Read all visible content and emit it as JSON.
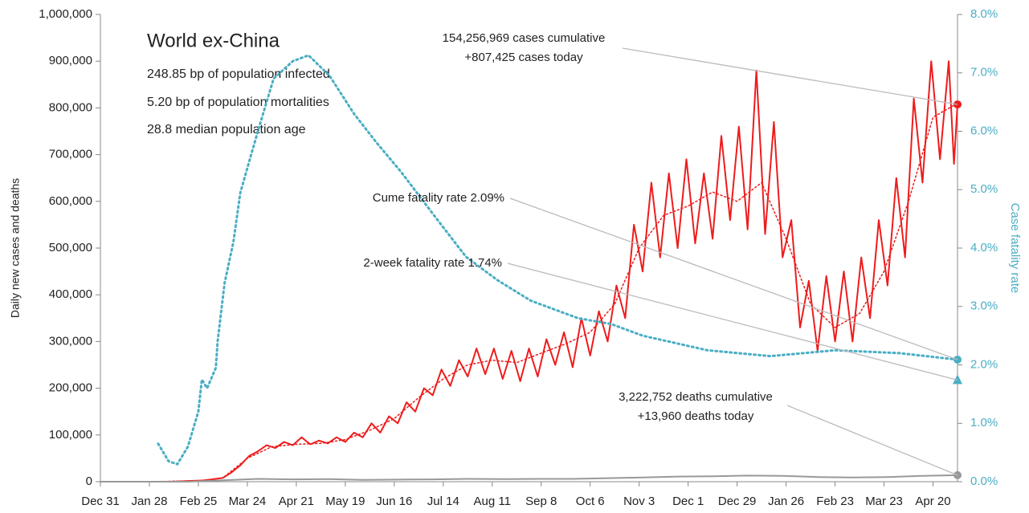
{
  "chart_data": {
    "type": "line",
    "title": "World ex-China",
    "subtitle_lines": [
      "248.85 bp of population infected",
      "5.20 bp of population mortalities",
      "28.8 median population age"
    ],
    "ylabel": "Daily new cases and deaths",
    "y2label": "Case fatality rate",
    "xlim": [
      0,
      490
    ],
    "xticks": [
      {
        "value": 0,
        "label": "Dec 31"
      },
      {
        "value": 28,
        "label": "Jan 28"
      },
      {
        "value": 56,
        "label": "Feb 25"
      },
      {
        "value": 84,
        "label": "Mar 24"
      },
      {
        "value": 112,
        "label": "Apr 21"
      },
      {
        "value": 140,
        "label": "May 19"
      },
      {
        "value": 168,
        "label": "Jun 16"
      },
      {
        "value": 196,
        "label": "Jul 14"
      },
      {
        "value": 224,
        "label": "Aug 11"
      },
      {
        "value": 252,
        "label": "Sep 8"
      },
      {
        "value": 280,
        "label": "Oct 6"
      },
      {
        "value": 308,
        "label": "Nov 3"
      },
      {
        "value": 336,
        "label": "Dec 1"
      },
      {
        "value": 364,
        "label": "Dec 29"
      },
      {
        "value": 392,
        "label": "Jan 26"
      },
      {
        "value": 420,
        "label": "Feb 23"
      },
      {
        "value": 448,
        "label": "Mar 23"
      },
      {
        "value": 476,
        "label": "Apr 20"
      }
    ],
    "ylim": [
      0,
      1000000
    ],
    "yticks": [
      0,
      {
        "value": 100000,
        "label": "100,000"
      },
      {
        "value": 200000,
        "label": "200,000"
      },
      {
        "value": 300000,
        "label": "300,000"
      },
      {
        "value": 400000,
        "label": "400,000"
      },
      {
        "value": 500000,
        "label": "500,000"
      },
      {
        "value": 600000,
        "label": "600,000"
      },
      {
        "value": 700000,
        "label": "700,000"
      },
      {
        "value": 800000,
        "label": "800,000"
      },
      {
        "value": 900000,
        "label": "900,000"
      },
      {
        "value": 1000000,
        "label": "1,000,000"
      }
    ],
    "y2lim": [
      0,
      8
    ],
    "y2ticks": [
      {
        "value": 0,
        "label": "0.0%"
      },
      {
        "value": 1,
        "label": "1.0%"
      },
      {
        "value": 2,
        "label": "2.0%"
      },
      {
        "value": 3,
        "label": "3.0%"
      },
      {
        "value": 4,
        "label": "4.0%"
      },
      {
        "value": 5,
        "label": "5.0%"
      },
      {
        "value": 6,
        "label": "6.0%"
      },
      {
        "value": 7,
        "label": "7.0%"
      },
      {
        "value": 8,
        "label": "8.0%"
      }
    ],
    "series": [
      {
        "color": "#ee1c1c",
        "style": "solid",
        "end_marker": "circle",
        "x": [
          0,
          20,
          40,
          60,
          70,
          75,
          80,
          85,
          90,
          95,
          100,
          105,
          110,
          115,
          120,
          125,
          130,
          135,
          140,
          145,
          150,
          155,
          160,
          165,
          170,
          175,
          180,
          185,
          190,
          195,
          200,
          205,
          210,
          215,
          220,
          225,
          230,
          235,
          240,
          245,
          250,
          255,
          260,
          265,
          270,
          275,
          280,
          285,
          290,
          295,
          300,
          305,
          310,
          315,
          320,
          325,
          330,
          335,
          340,
          345,
          350,
          355,
          360,
          365,
          370,
          375,
          380,
          385,
          390,
          395,
          400,
          405,
          410,
          415,
          420,
          425,
          430,
          435,
          440,
          445,
          450,
          455,
          460,
          465,
          470,
          475,
          480,
          485,
          488,
          490
        ],
        "values": [
          0,
          0,
          0,
          3000,
          8000,
          20000,
          35000,
          55000,
          65000,
          78000,
          72000,
          85000,
          78000,
          95000,
          80000,
          88000,
          82000,
          95000,
          85000,
          105000,
          95000,
          125000,
          105000,
          140000,
          125000,
          170000,
          150000,
          200000,
          185000,
          240000,
          205000,
          260000,
          225000,
          285000,
          230000,
          285000,
          220000,
          280000,
          215000,
          285000,
          225000,
          305000,
          250000,
          320000,
          245000,
          350000,
          270000,
          365000,
          300000,
          420000,
          350000,
          550000,
          450000,
          640000,
          480000,
          660000,
          500000,
          690000,
          510000,
          660000,
          520000,
          740000,
          560000,
          760000,
          540000,
          880000,
          530000,
          770000,
          480000,
          560000,
          330000,
          430000,
          280000,
          440000,
          300000,
          450000,
          300000,
          480000,
          350000,
          560000,
          420000,
          650000,
          480000,
          820000,
          640000,
          900000,
          690000,
          900000,
          680000,
          807425
        ]
      },
      {
        "color": "#ee1c1c",
        "style": "dotted",
        "x": [
          0,
          28,
          56,
          70,
          84,
          98,
          112,
          126,
          140,
          154,
          168,
          182,
          196,
          210,
          224,
          238,
          252,
          266,
          280,
          294,
          308,
          322,
          336,
          350,
          364,
          378,
          392,
          406,
          420,
          434,
          448,
          462,
          476,
          490
        ],
        "values": [
          0,
          0,
          2000,
          8000,
          50000,
          75000,
          80000,
          82000,
          90000,
          110000,
          135000,
          180000,
          220000,
          250000,
          260000,
          255000,
          275000,
          295000,
          320000,
          380000,
          500000,
          570000,
          590000,
          620000,
          600000,
          640000,
          520000,
          380000,
          330000,
          360000,
          450000,
          600000,
          780000,
          810000
        ]
      },
      {
        "color": "#999999",
        "style": "solid",
        "end_marker": "circle",
        "x": [
          0,
          50,
          70,
          90,
          110,
          130,
          150,
          170,
          190,
          210,
          230,
          250,
          270,
          290,
          310,
          330,
          350,
          370,
          390,
          410,
          430,
          450,
          470,
          490
        ],
        "values": [
          0,
          0,
          3000,
          6000,
          5000,
          5500,
          4000,
          4500,
          5000,
          6000,
          5500,
          6000,
          6000,
          7500,
          9000,
          11000,
          11500,
          13000,
          12500,
          10000,
          9000,
          10000,
          12500,
          13960
        ]
      },
      {
        "color": "#4aaec4",
        "style": "dotted",
        "axis": "y2",
        "end_marker": "circle",
        "x": [
          33,
          39,
          44,
          50,
          56,
          58,
          61,
          66,
          67,
          71,
          76,
          80,
          90,
          99,
          110,
          119,
          131,
          145,
          158,
          172,
          191,
          209,
          227,
          246,
          273,
          292,
          310,
          347,
          383,
          420,
          457,
          490
        ],
        "values": [
          0.65,
          0.35,
          0.3,
          0.6,
          1.2,
          1.75,
          1.6,
          1.95,
          2.4,
          3.4,
          4.1,
          4.95,
          6.0,
          6.9,
          7.2,
          7.3,
          6.95,
          6.3,
          5.8,
          5.3,
          4.55,
          3.85,
          3.45,
          3.1,
          2.8,
          2.7,
          2.5,
          2.25,
          2.15,
          2.25,
          2.2,
          2.09
        ]
      }
    ],
    "markers": [
      {
        "x": 490,
        "value": 1.74,
        "axis": "y2",
        "shape": "triangle",
        "color": "#4aaec4"
      }
    ],
    "annotations": [
      {
        "lines": [
          "154,256,969 cases cumulative",
          "+807,425 cases today"
        ]
      },
      {
        "lines": [
          "Cume fatality rate 2.09%"
        ]
      },
      {
        "lines": [
          "2-week fatality rate 1.74%"
        ]
      },
      {
        "lines": [
          "3,222,752 deaths cumulative",
          "+13,960 deaths today"
        ]
      }
    ]
  }
}
